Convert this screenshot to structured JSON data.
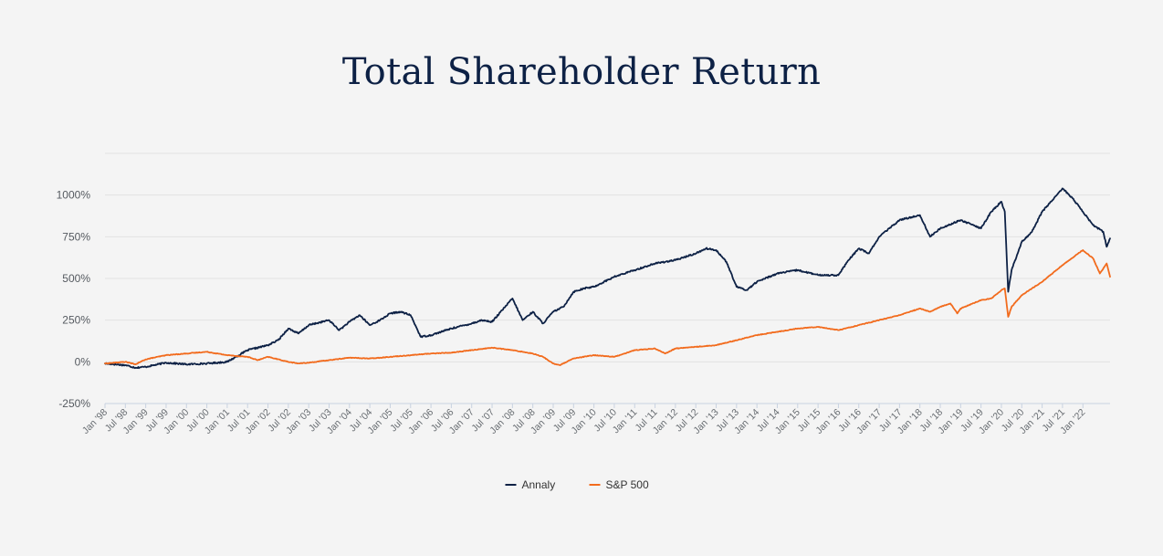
{
  "colors": {
    "background": "#f4f4f4",
    "title": "#0d2145",
    "grid": "#e2e2e2",
    "axis": "#c8d2e0",
    "annaly": "#0d2145",
    "sp500": "#f26b1d"
  },
  "chart_data": {
    "type": "line",
    "title": "Total Shareholder Return",
    "xlabel": "",
    "ylabel": "",
    "ylim": [
      -250,
      1250
    ],
    "y_ticks": [
      {
        "value": -250,
        "label": "-250%"
      },
      {
        "value": 0,
        "label": "0%"
      },
      {
        "value": 250,
        "label": "250%"
      },
      {
        "value": 500,
        "label": "500%"
      },
      {
        "value": 750,
        "label": "750%"
      },
      {
        "value": 1000,
        "label": "1000%"
      }
    ],
    "x_range": [
      "Jan '98",
      "Sep '22"
    ],
    "x_ticks": [
      "Jan '98",
      "Jul '98",
      "Jan '99",
      "Jul '99",
      "Jan '00",
      "Jul '00",
      "Jan '01",
      "Jul '01",
      "Jan '02",
      "Jul '02",
      "Jan '03",
      "Jul '03",
      "Jan '04",
      "Jul '04",
      "Jan '05",
      "Jul '05",
      "Jan '06",
      "Jul '06",
      "Jan '07",
      "Jul '07",
      "Jan '08",
      "Jul '08",
      "Jan '09",
      "Jul '09",
      "Jan '10",
      "Jul '10",
      "Jan '11",
      "Jul '11",
      "Jan '12",
      "Jul '12",
      "Jan '13",
      "Jul '13",
      "Jan '14",
      "Jul '14",
      "Jan '15",
      "Jul '15",
      "Jan '16",
      "Jul '16",
      "Jan '17",
      "Jul '17",
      "Jan '18",
      "Jul '18",
      "Jan '19",
      "Jul '19",
      "Jan '20",
      "Jul '20",
      "Jan '21",
      "Jul '21",
      "Jan '22"
    ],
    "grid": true,
    "legend": "bottom-center",
    "series": [
      {
        "name": "Annaly",
        "color": "#0d2145",
        "points": [
          [
            "Jan '98",
            -10
          ],
          [
            "Jul '98",
            -20
          ],
          [
            "Oct '98",
            -35
          ],
          [
            "Jan '99",
            -30
          ],
          [
            "Jul '99",
            -5
          ],
          [
            "Jan '00",
            -15
          ],
          [
            "Jul '00",
            -10
          ],
          [
            "Jan '01",
            0
          ],
          [
            "Jul '01",
            70
          ],
          [
            "Jan '02",
            100
          ],
          [
            "Apr '02",
            130
          ],
          [
            "Jul '02",
            200
          ],
          [
            "Oct '02",
            170
          ],
          [
            "Jan '03",
            220
          ],
          [
            "Jul '03",
            250
          ],
          [
            "Oct '03",
            190
          ],
          [
            "Jan '04",
            240
          ],
          [
            "Apr '04",
            280
          ],
          [
            "Jul '04",
            220
          ],
          [
            "Oct '04",
            250
          ],
          [
            "Jan '05",
            290
          ],
          [
            "Apr '05",
            300
          ],
          [
            "Jul '05",
            280
          ],
          [
            "Oct '05",
            150
          ],
          [
            "Jan '06",
            160
          ],
          [
            "Apr '06",
            180
          ],
          [
            "Jul '06",
            200
          ],
          [
            "Jan '07",
            230
          ],
          [
            "Apr '07",
            250
          ],
          [
            "Jul '07",
            240
          ],
          [
            "Oct '07",
            310
          ],
          [
            "Jan '08",
            380
          ],
          [
            "Apr '08",
            250
          ],
          [
            "Jul '08",
            300
          ],
          [
            "Oct '08",
            230
          ],
          [
            "Jan '09",
            300
          ],
          [
            "Apr '09",
            330
          ],
          [
            "Jul '09",
            420
          ],
          [
            "Oct '09",
            440
          ],
          [
            "Jan '10",
            450
          ],
          [
            "Jul '10",
            510
          ],
          [
            "Jan '11",
            550
          ],
          [
            "Jul '11",
            590
          ],
          [
            "Jan '12",
            610
          ],
          [
            "Jul '12",
            650
          ],
          [
            "Oct '12",
            680
          ],
          [
            "Jan '13",
            670
          ],
          [
            "Apr '13",
            600
          ],
          [
            "Jul '13",
            450
          ],
          [
            "Oct '13",
            430
          ],
          [
            "Jan '14",
            480
          ],
          [
            "Jul '14",
            530
          ],
          [
            "Jan '15",
            550
          ],
          [
            "Jul '15",
            520
          ],
          [
            "Jan '16",
            520
          ],
          [
            "Apr '16",
            610
          ],
          [
            "Jul '16",
            680
          ],
          [
            "Oct '16",
            650
          ],
          [
            "Jan '17",
            750
          ],
          [
            "Jul '17",
            850
          ],
          [
            "Jan '18",
            880
          ],
          [
            "Apr '18",
            750
          ],
          [
            "Jul '18",
            800
          ],
          [
            "Jan '19",
            850
          ],
          [
            "Jul '19",
            800
          ],
          [
            "Oct '19",
            900
          ],
          [
            "Jan '20",
            960
          ],
          [
            "Feb '20",
            900
          ],
          [
            "Mar '20",
            420
          ],
          [
            "Apr '20",
            550
          ],
          [
            "Jul '20",
            720
          ],
          [
            "Oct '20",
            780
          ],
          [
            "Jan '21",
            900
          ],
          [
            "Jul '21",
            1040
          ],
          [
            "Oct '21",
            980
          ],
          [
            "Jan '22",
            900
          ],
          [
            "Apr '22",
            820
          ],
          [
            "Jul '22",
            780
          ],
          [
            "Aug '22",
            690
          ],
          [
            "Sep '22",
            740
          ]
        ]
      },
      {
        "name": "S&P 500",
        "color": "#f26b1d",
        "points": [
          [
            "Jan '98",
            -10
          ],
          [
            "Jul '98",
            0
          ],
          [
            "Oct '98",
            -15
          ],
          [
            "Jan '99",
            15
          ],
          [
            "Jul '99",
            40
          ],
          [
            "Jan '00",
            50
          ],
          [
            "Jul '00",
            60
          ],
          [
            "Jan '01",
            40
          ],
          [
            "Jul '01",
            30
          ],
          [
            "Oct '01",
            10
          ],
          [
            "Jan '02",
            30
          ],
          [
            "Jul '02",
            0
          ],
          [
            "Oct '02",
            -10
          ],
          [
            "Jan '03",
            -5
          ],
          [
            "Jul '03",
            10
          ],
          [
            "Jan '04",
            25
          ],
          [
            "Jul '04",
            20
          ],
          [
            "Jan '05",
            30
          ],
          [
            "Jul '05",
            40
          ],
          [
            "Jan '06",
            50
          ],
          [
            "Jul '06",
            55
          ],
          [
            "Jan '07",
            70
          ],
          [
            "Jul '07",
            85
          ],
          [
            "Jan '08",
            70
          ],
          [
            "Jul '08",
            50
          ],
          [
            "Oct '08",
            30
          ],
          [
            "Jan '09",
            -10
          ],
          [
            "Mar '09",
            -20
          ],
          [
            "Jul '09",
            20
          ],
          [
            "Jan '10",
            40
          ],
          [
            "Jul '10",
            30
          ],
          [
            "Jan '11",
            70
          ],
          [
            "Jul '11",
            80
          ],
          [
            "Oct '11",
            50
          ],
          [
            "Jan '12",
            80
          ],
          [
            "Jul '12",
            90
          ],
          [
            "Jan '13",
            100
          ],
          [
            "Jul '13",
            130
          ],
          [
            "Jan '14",
            160
          ],
          [
            "Jul '14",
            180
          ],
          [
            "Jan '15",
            200
          ],
          [
            "Jul '15",
            210
          ],
          [
            "Jan '16",
            190
          ],
          [
            "Jul '16",
            220
          ],
          [
            "Jan '17",
            250
          ],
          [
            "Jul '17",
            280
          ],
          [
            "Jan '18",
            320
          ],
          [
            "Apr '18",
            300
          ],
          [
            "Jul '18",
            330
          ],
          [
            "Oct '18",
            350
          ],
          [
            "Dec '18",
            290
          ],
          [
            "Jan '19",
            320
          ],
          [
            "Jul '19",
            370
          ],
          [
            "Oct '19",
            380
          ],
          [
            "Jan '20",
            430
          ],
          [
            "Feb '20",
            440
          ],
          [
            "Mar '20",
            270
          ],
          [
            "Apr '20",
            330
          ],
          [
            "Jul '20",
            400
          ],
          [
            "Jan '21",
            480
          ],
          [
            "Jul '21",
            580
          ],
          [
            "Jan '22",
            670
          ],
          [
            "Apr '22",
            620
          ],
          [
            "Jun '22",
            530
          ],
          [
            "Aug '22",
            590
          ],
          [
            "Sep '22",
            510
          ]
        ]
      }
    ]
  }
}
